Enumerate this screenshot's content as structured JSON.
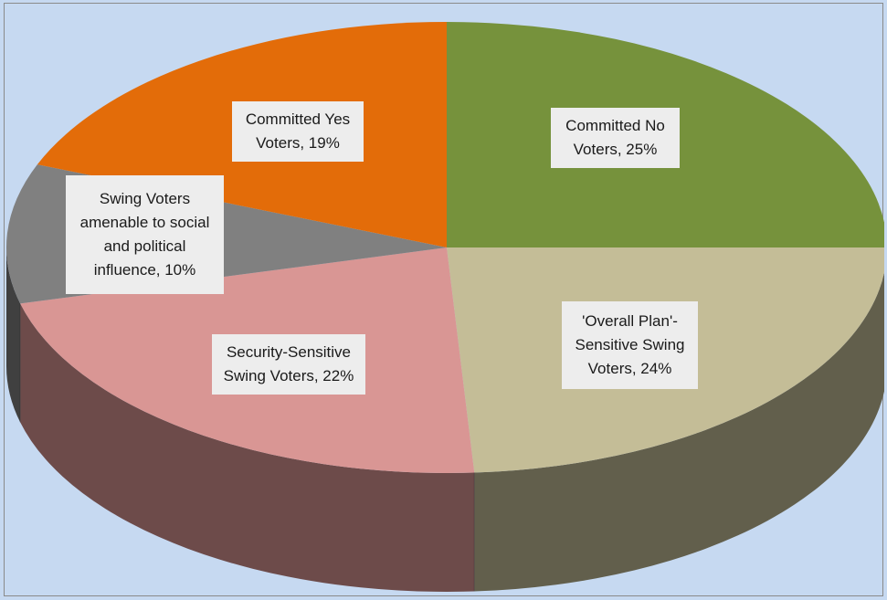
{
  "chart_data": {
    "type": "pie",
    "style": "3d",
    "slices": [
      {
        "category": "Committed No Voters",
        "value": 25,
        "label": "Committed No\nVoters, 25%",
        "color": "#76923c"
      },
      {
        "category": "'Overall Plan'-Sensitive Swing Voters",
        "value": 24,
        "label": "'Overall Plan'-\nSensitive Swing\nVoters, 24%",
        "color": "#c4bd97"
      },
      {
        "category": "Security-Sensitive Swing Voters",
        "value": 22,
        "label": "Security-Sensitive\nSwing Voters, 22%",
        "color": "#d99694"
      },
      {
        "category": "Swing Voters amenable to social and political influence",
        "value": 10,
        "label": "Swing Voters\namenable to social\nand political\ninfluence, 10%",
        "color": "#808080"
      },
      {
        "category": "Committed Yes Voters",
        "value": 19,
        "label": "Committed Yes\nVoters, 19%",
        "color": "#e36c09"
      }
    ],
    "title": "",
    "legend": "none",
    "background_color": "#c6d9f1"
  }
}
